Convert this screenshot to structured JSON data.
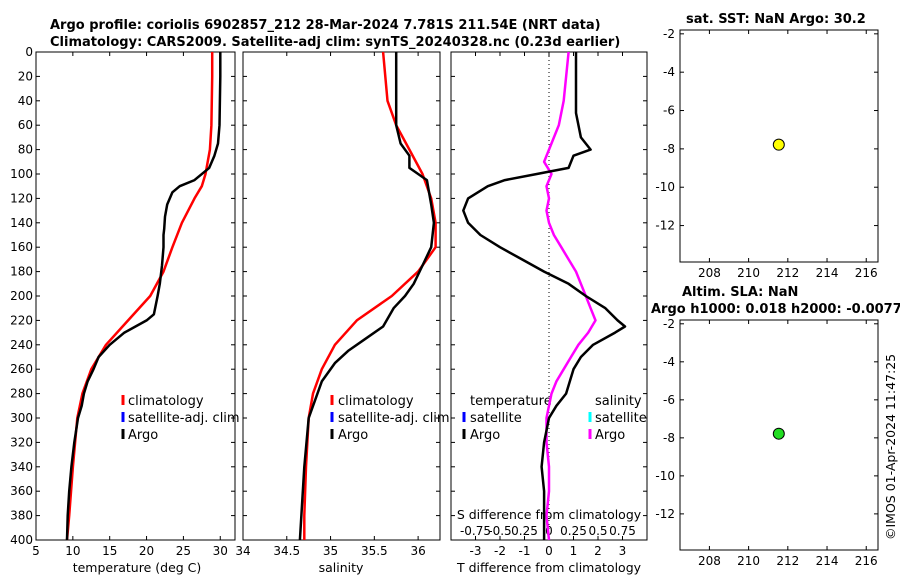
{
  "title_line1": "Argo profile: coriolis 6902857_212 28-Mar-2024 7.781S 211.54E (NRT data)",
  "title_line2": "Climatology: CARS2009. Satellite-adj clim: synTS_20240328.nc (0.23d earlier)",
  "watermark": "©IMOS 01-Apr-2024 11:47:25",
  "colors": {
    "climatology": "#ff0000",
    "satellite": "#0000ff",
    "argo": "#000000",
    "s_argo": "#ff00ff",
    "s_satellite": "#00ffff",
    "sst_dot": "#ffff00",
    "sla_dot": "#22dd22"
  },
  "chart_data": [
    {
      "type": "line",
      "id": "temperature",
      "xlabel": "temperature (deg C)",
      "ylabel": "",
      "xlim": [
        5,
        32
      ],
      "ylim": [
        400,
        0
      ],
      "xticks": [
        5,
        10,
        15,
        20,
        25,
        30
      ],
      "yticks": [
        0,
        20,
        40,
        60,
        80,
        100,
        120,
        140,
        160,
        180,
        200,
        220,
        240,
        260,
        280,
        300,
        320,
        340,
        360,
        380,
        400
      ],
      "legend": [
        "climatology",
        "satellite-adj. clim",
        "Argo"
      ],
      "series": [
        {
          "name": "climatology",
          "y": [
            0,
            20,
            60,
            80,
            100,
            110,
            120,
            140,
            160,
            180,
            200,
            220,
            240,
            260,
            280,
            300,
            340,
            380,
            400
          ],
          "x": [
            28.9,
            28.9,
            28.8,
            28.6,
            28.0,
            27.5,
            26.5,
            24.8,
            23.5,
            22.3,
            20.5,
            17.5,
            14.5,
            12.5,
            11.3,
            10.6,
            10.0,
            9.5,
            9.2
          ]
        },
        {
          "name": "Argo",
          "y": [
            0,
            20,
            60,
            75,
            85,
            95,
            105,
            110,
            115,
            125,
            135,
            145,
            150,
            160,
            175,
            190,
            200,
            215,
            220,
            230,
            240,
            250,
            260,
            270,
            280,
            290,
            300,
            320,
            340,
            360,
            380,
            400
          ],
          "x": [
            30.0,
            30.0,
            29.9,
            29.7,
            29.2,
            28.5,
            26.5,
            24.5,
            23.5,
            22.8,
            22.5,
            22.4,
            22.3,
            22.3,
            22.1,
            21.8,
            21.5,
            21.0,
            20.0,
            17.0,
            15.0,
            13.5,
            12.8,
            12.0,
            11.5,
            11.2,
            10.7,
            10.2,
            9.8,
            9.5,
            9.3,
            9.2
          ]
        }
      ]
    },
    {
      "type": "line",
      "id": "salinity",
      "xlabel": "salinity",
      "ylabel": "",
      "xlim": [
        34,
        36.25
      ],
      "ylim": [
        400,
        0
      ],
      "xticks": [
        34,
        34.5,
        35,
        35.5,
        36
      ],
      "legend": [
        "climatology",
        "satellite-adj. clim",
        "Argo"
      ],
      "series": [
        {
          "name": "climatology",
          "y": [
            0,
            40,
            60,
            80,
            100,
            120,
            140,
            160,
            180,
            200,
            220,
            240,
            260,
            280,
            300,
            340,
            380,
            400
          ],
          "x": [
            35.6,
            35.65,
            35.75,
            35.9,
            36.05,
            36.15,
            36.2,
            36.2,
            36.0,
            35.7,
            35.3,
            35.05,
            34.9,
            34.8,
            34.75,
            34.72,
            34.7,
            34.7
          ]
        },
        {
          "name": "Argo",
          "y": [
            0,
            60,
            75,
            85,
            95,
            105,
            125,
            140,
            160,
            175,
            190,
            200,
            210,
            225,
            235,
            245,
            255,
            270,
            300,
            340,
            400
          ],
          "x": [
            35.75,
            35.75,
            35.8,
            35.9,
            35.9,
            36.1,
            36.15,
            36.18,
            36.15,
            36.05,
            35.95,
            35.85,
            35.72,
            35.6,
            35.4,
            35.2,
            35.05,
            34.9,
            34.75,
            34.7,
            34.65
          ]
        }
      ]
    },
    {
      "type": "line",
      "id": "difference",
      "xlabel": "T difference from climatology",
      "x2label": "S difference from climatology",
      "xlim": [
        -4,
        4
      ],
      "ylim": [
        400,
        0
      ],
      "xticks": [
        -3,
        -2,
        -1,
        0,
        1,
        2,
        3
      ],
      "x2ticklabels": [
        "-0.75",
        "-0.5",
        "0.25",
        "0",
        "0.25",
        "0.5",
        "0.75"
      ],
      "legend_left": [
        "temperature",
        "satellite",
        "Argo"
      ],
      "legend_right": [
        "salinity",
        "satellite",
        "Argo"
      ],
      "series": [
        {
          "name": "temperature Argo",
          "y": [
            0,
            50,
            70,
            80,
            85,
            95,
            100,
            105,
            110,
            120,
            130,
            140,
            150,
            160,
            170,
            180,
            190,
            200,
            210,
            220,
            225,
            230,
            240,
            250,
            260,
            280,
            290,
            300,
            320,
            340,
            360,
            380,
            400
          ],
          "x": [
            1.1,
            1.1,
            1.3,
            1.7,
            1.0,
            0.8,
            -0.5,
            -1.8,
            -2.5,
            -3.3,
            -3.5,
            -3.3,
            -2.8,
            -2.0,
            -1.1,
            -0.2,
            0.8,
            1.5,
            2.3,
            2.8,
            3.1,
            2.7,
            1.8,
            1.3,
            1.0,
            0.7,
            0.3,
            0.0,
            -0.2,
            -0.3,
            -0.2,
            -0.2,
            -0.2
          ]
        },
        {
          "name": "salinity Argo",
          "y": [
            0,
            40,
            60,
            80,
            90,
            100,
            110,
            120,
            130,
            140,
            150,
            160,
            170,
            180,
            190,
            200,
            210,
            220,
            230,
            240,
            250,
            260,
            270,
            280,
            290,
            300,
            320,
            340,
            360,
            380,
            400
          ],
          "x": [
            0.8,
            0.6,
            0.4,
            0.0,
            -0.2,
            0.1,
            -0.1,
            0.0,
            -0.1,
            0.0,
            0.2,
            0.5,
            0.8,
            1.1,
            1.3,
            1.5,
            1.7,
            1.9,
            1.6,
            1.2,
            0.9,
            0.6,
            0.3,
            0.1,
            0.0,
            -0.1,
            -0.1,
            0.0,
            0.0,
            -0.1,
            0.0
          ]
        }
      ]
    },
    {
      "type": "scatter",
      "id": "sst",
      "title": "sat. SST: NaN Argo: 30.2",
      "xlim": [
        206.5,
        216.6
      ],
      "ylim": [
        -13.9,
        -1.8
      ],
      "xticks": [
        208,
        210,
        212,
        214,
        216
      ],
      "yticks": [
        -2,
        -4,
        -6,
        -8,
        -10,
        -12
      ],
      "points": [
        {
          "x": 211.54,
          "y": -7.781
        }
      ]
    },
    {
      "type": "scatter",
      "id": "sla",
      "title": "Altim. SLA: NaN",
      "title2": "Argo h1000: 0.018 h2000: -0.0077",
      "xlim": [
        206.5,
        216.6
      ],
      "ylim": [
        -13.9,
        -1.8
      ],
      "xticks": [
        208,
        210,
        212,
        214,
        216
      ],
      "yticks": [
        -2,
        -4,
        -6,
        -8,
        -10,
        -12
      ],
      "points": [
        {
          "x": 211.54,
          "y": -7.781
        }
      ]
    }
  ]
}
